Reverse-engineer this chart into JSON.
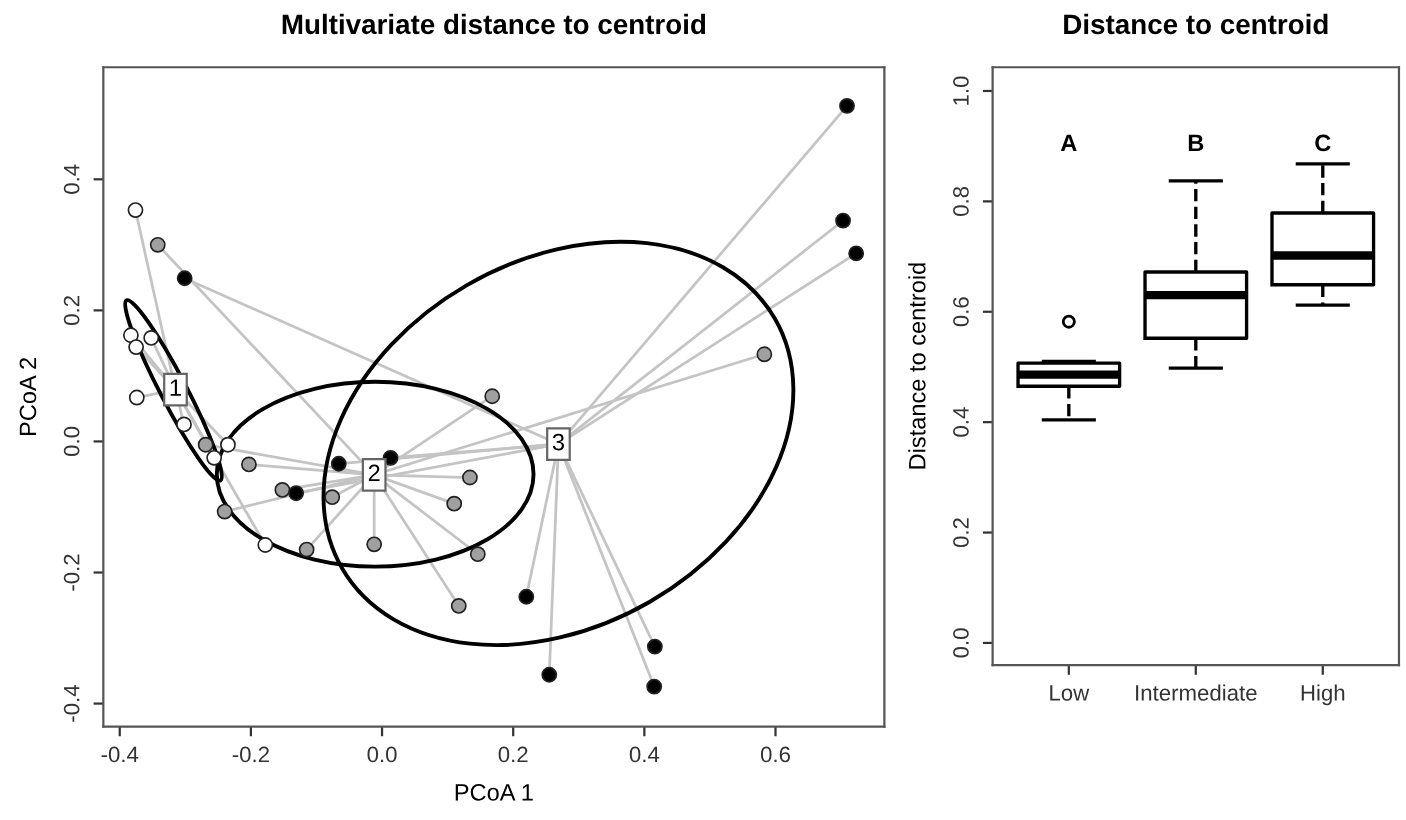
{
  "chart_data": [
    {
      "type": "scatter",
      "title": "Multivariate distance to centroid",
      "xlabel": "PCoA 1",
      "ylabel": "PCoA 2",
      "xlim": [
        -0.425,
        0.766
      ],
      "ylim": [
        -0.435,
        0.571
      ],
      "xticks": [
        {
          "value": -0.4,
          "label": "-0.4"
        },
        {
          "value": -0.2,
          "label": "-0.2"
        },
        {
          "value": 0.0,
          "label": "0.0"
        },
        {
          "value": 0.2,
          "label": "0.2"
        },
        {
          "value": 0.4,
          "label": "0.4"
        },
        {
          "value": 0.6,
          "label": "0.6"
        }
      ],
      "yticks": [
        {
          "value": -0.4,
          "label": "-0.4"
        },
        {
          "value": -0.2,
          "label": "-0.2"
        },
        {
          "value": 0.0,
          "label": "0.0"
        },
        {
          "value": 0.2,
          "label": "0.2"
        },
        {
          "value": 0.4,
          "label": "0.4"
        }
      ],
      "grid": false,
      "legend": false,
      "marker": "circle",
      "series": [
        {
          "color": "#ffffff",
          "x": [
            -0.376,
            -0.383,
            -0.375,
            -0.352,
            -0.374,
            -0.302,
            -0.235,
            -0.256,
            -0.178
          ],
          "values": [
            0.353,
            0.162,
            0.144,
            0.158,
            0.067,
            0.026,
            -0.005,
            -0.025,
            -0.158
          ]
        },
        {
          "color": "#a0a0a0",
          "x": [
            -0.342,
            -0.269,
            -0.203,
            -0.152,
            -0.24,
            -0.076,
            -0.115,
            -0.012,
            0.11,
            0.134,
            0.146,
            0.168,
            0.117,
            0.583
          ],
          "values": [
            0.3,
            -0.005,
            -0.035,
            -0.074,
            -0.107,
            -0.085,
            -0.165,
            -0.157,
            -0.095,
            -0.055,
            -0.172,
            0.069,
            -0.251,
            0.133
          ]
        },
        {
          "color": "#000000",
          "x": [
            -0.301,
            -0.066,
            0.013,
            -0.131,
            0.22,
            0.709,
            0.703,
            0.723,
            0.416,
            0.255,
            0.415
          ],
          "values": [
            0.249,
            -0.034,
            -0.025,
            -0.079,
            -0.237,
            0.512,
            0.337,
            0.287,
            -0.313,
            -0.356,
            -0.374
          ]
        }
      ],
      "annotations": [
        {
          "text": "1",
          "x": -0.315,
          "y": 0.079
        },
        {
          "text": "2",
          "x": -0.012,
          "y": -0.051
        },
        {
          "text": "3",
          "x": 0.269,
          "y": -0.004
        }
      ]
    },
    {
      "type": "box",
      "title": "Distance to centroid",
      "ylabel": "Distance to centroid",
      "categories": [
        "Low",
        "Intermediate",
        "High"
      ],
      "ylim": [
        -0.04,
        1.043
      ],
      "yticks": [
        {
          "value": 0.0,
          "label": "0.0"
        },
        {
          "value": 0.2,
          "label": "0.2"
        },
        {
          "value": 0.4,
          "label": "0.4"
        },
        {
          "value": 0.6,
          "label": "0.6"
        },
        {
          "value": 0.8,
          "label": "0.8"
        },
        {
          "value": 1.0,
          "label": "1.0"
        }
      ],
      "grid": false,
      "legend": false,
      "boxes": [
        {
          "low": 0.404,
          "q1": 0.465,
          "median": 0.486,
          "q3": 0.507,
          "high": 0.51,
          "outliers": [
            0.582
          ]
        },
        {
          "low": 0.498,
          "q1": 0.552,
          "median": 0.63,
          "q3": 0.672,
          "high": 0.837
        },
        {
          "low": 0.612,
          "q1": 0.649,
          "median": 0.702,
          "q3": 0.779,
          "high": 0.868
        }
      ],
      "annotations": [
        "A",
        "B",
        "C"
      ]
    }
  ]
}
